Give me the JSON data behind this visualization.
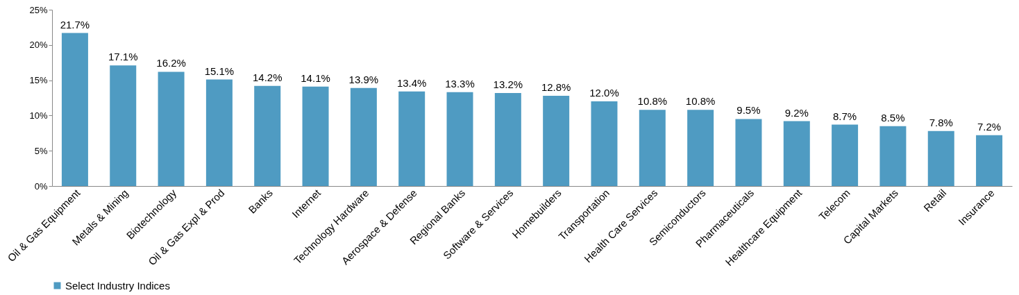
{
  "chart_data": {
    "type": "bar",
    "categories": [
      "Oil & Gas Equipment",
      "Metals & Mining",
      "Biotechnology",
      "Oil & Gas Expl & Prod",
      "Banks",
      "Internet",
      "Technology Hardware",
      "Aerospace & Defense",
      "Regional Banks",
      "Software & Services",
      "Homebuilders",
      "Transportation",
      "Health Care Services",
      "Semiconductors",
      "Pharmaceuticals",
      "Healthcare Equipment",
      "Telecom",
      "Capital Markets",
      "Retail",
      "Insurance"
    ],
    "series": [
      {
        "name": "Select Industry Indices",
        "color": "#4f9bc2",
        "values": [
          21.7,
          17.1,
          16.2,
          15.1,
          14.2,
          14.1,
          13.9,
          13.4,
          13.3,
          13.2,
          12.8,
          12.0,
          10.8,
          10.8,
          9.5,
          9.2,
          8.7,
          8.5,
          7.8,
          7.2
        ],
        "value_labels": [
          "21.7%",
          "17.1%",
          "16.2%",
          "15.1%",
          "14.2%",
          "14.1%",
          "13.9%",
          "13.4%",
          "13.3%",
          "13.2%",
          "12.8%",
          "12.0%",
          "10.8%",
          "10.8%",
          "9.5%",
          "9.2%",
          "8.7%",
          "8.5%",
          "7.8%",
          "7.2%"
        ]
      }
    ],
    "ylim": [
      0,
      25
    ],
    "yticks": [
      {
        "value": 0,
        "label": "0%"
      },
      {
        "value": 5,
        "label": "5%"
      },
      {
        "value": 10,
        "label": "10%"
      },
      {
        "value": 15,
        "label": "15%"
      },
      {
        "value": 20,
        "label": "20%"
      },
      {
        "value": 25,
        "label": "25%"
      }
    ],
    "grid": false,
    "legend": "bottom"
  }
}
